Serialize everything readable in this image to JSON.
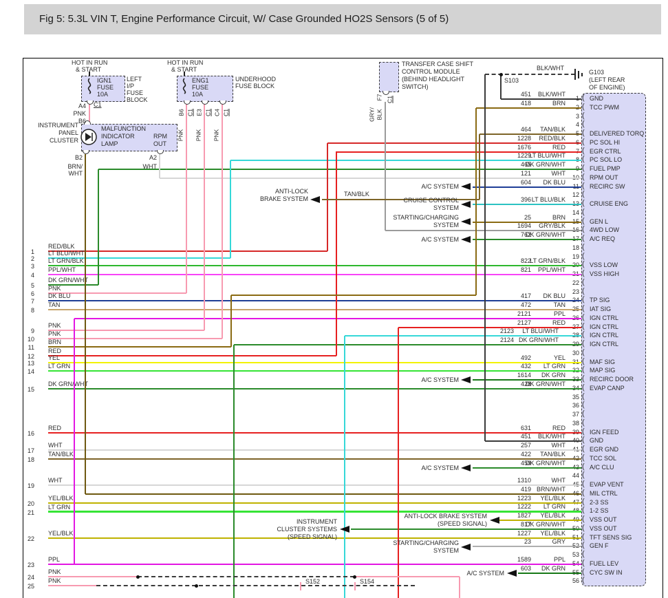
{
  "title": "Fig 5: 5.3L VIN T, Engine Performance Circuit, W/ Case Grounded HO2S Sensors (5 of 5)",
  "colors": {
    "PNK": "#f79ab0",
    "RED": "#e62020",
    "RED/BLK": "#d62828",
    "DK BLU": "#1e3d96",
    "LT BLU/WHT": "#35d8d8",
    "LT BLU/BLK": "#2cc2c2",
    "LT GRN": "#35e435",
    "LT GRN/BLK": "#2eb82e",
    "DK GRN": "#167816",
    "DK GRN/WHT": "#2a8a2a",
    "TAN": "#c7a56d",
    "TAN/BLK": "#7d6428",
    "BRN": "#8a6a12",
    "BRN/WHT": "#6e5810",
    "YEL": "#f2f200",
    "YEL/BLK": "#bfb200",
    "PPL": "#e316e3",
    "PPL/WHT": "#f743f7",
    "WHT": "#d6d6d6",
    "GRY": "#aeaeae",
    "GRY/BLK": "#9b9b9b",
    "BLK/WHT": "#3a3a3a",
    "BLK": "#222222"
  },
  "fuse_ign1": {
    "hot1": "HOT IN RUN",
    "hot2": "& START",
    "name": "IGN1",
    "fuse": "FUSE",
    "amps": "10A",
    "block1": "LEFT",
    "block2": "I/P",
    "block3": "FUSE",
    "block4": "BLOCK",
    "term_a4": "A4",
    "conn": "C1",
    "wire": "PNK",
    "term_b6": "B6"
  },
  "fuse_eng1": {
    "hot1": "HOT IN RUN",
    "hot2": "& START",
    "name": "ENG1",
    "fuse": "FUSE",
    "amps": "10A",
    "block1": "UNDERHOOD",
    "block2": "FUSE BLOCK",
    "drops": [
      {
        "term": "B6",
        "conn": "C1",
        "wire": "PNK"
      },
      {
        "term": "E3",
        "conn": "C1",
        "wire": "PNK"
      },
      {
        "term": "C4",
        "conn": "C1",
        "wire": "PNK"
      }
    ]
  },
  "cluster": {
    "label1": "INSTRUMENT",
    "label2": "PANEL",
    "label3": "CLUSTER",
    "mil1": "MALFUNCTION",
    "mil2": "INDICATOR",
    "mil3": "LAMP",
    "rpm1": "RPM",
    "rpm2": "OUT",
    "term_b2": "B2",
    "b2_wire1": "BRN/",
    "b2_wire2": "WHT",
    "term_a2": "A2",
    "a2_wire": "WHT"
  },
  "transfer_case": {
    "label1": "TRANSFER CASE SHIFT",
    "label2": "CONTROL MODULE",
    "label3": "(BEHIND HEADLIGHT",
    "label4": "SWITCH)",
    "term": "F7",
    "conn": "C1",
    "wire1": "GRY/",
    "wire2": "BLK"
  },
  "ground": {
    "id": "G103",
    "loc1": "(LEFT REAR",
    "loc2": "OF ENGINE)",
    "wire": "BLK/WHT"
  },
  "splices": {
    "s103": "S103",
    "s152": "S152",
    "s154": "S154"
  },
  "systems": {
    "ac": "A/C SYSTEM",
    "cruise1": "CRUISE CONTROL",
    "cruise2": "SYSTEM",
    "charge1": "STARTING/CHARGING",
    "charge2": "SYSTEM",
    "abs1": "ANTI-LOCK",
    "abs2": "BRAKE SYSTEM",
    "abs_tan": "TAN/BLK",
    "abs_sp1": "ANTI-LOCK BRAKE SYSTEM",
    "abs_sp2": "(SPEED SIGNAL)",
    "ic1": "INSTRUMENT",
    "ic2": "CLUSTER SYSTEMS",
    "ic3": "(SPEED SIGNAL)"
  },
  "left_rows": [
    {
      "n": "1",
      "color": "RED/BLK"
    },
    {
      "n": "2",
      "color": "LT BLU/WHT"
    },
    {
      "n": "3",
      "color": "LT GRN/BLK"
    },
    {
      "n": "4",
      "color": "PPL/WHT"
    },
    {
      "n": "5",
      "color": "DK GRN/WHT"
    },
    {
      "n": "6",
      "color": "PNK"
    },
    {
      "n": "7",
      "color": "DK BLU"
    },
    {
      "n": "8",
      "color": "TAN"
    },
    {
      "n": "9",
      "color": "PNK"
    },
    {
      "n": "10",
      "color": "PNK"
    },
    {
      "n": "11",
      "color": "BRN"
    },
    {
      "n": "12",
      "color": "RED"
    },
    {
      "n": "13",
      "color": "YEL"
    },
    {
      "n": "14",
      "color": "LT GRN"
    },
    {
      "n": "15",
      "color": "DK GRN/WHT"
    },
    {
      "n": "16",
      "color": "RED"
    },
    {
      "n": "17",
      "color": "WHT"
    },
    {
      "n": "18",
      "color": "TAN/BLK"
    },
    {
      "n": "19",
      "color": "WHT"
    },
    {
      "n": "20",
      "color": "YEL/BLK"
    },
    {
      "n": "21",
      "color": "LT GRN"
    },
    {
      "n": "22",
      "color": "YEL/BLK"
    },
    {
      "n": "23",
      "color": "PPL"
    },
    {
      "n": "24",
      "color": "PNK"
    },
    {
      "n": "25",
      "color": "PNK"
    }
  ],
  "pins": [
    {
      "n": "1",
      "num": "451",
      "color": "BLK/WHT",
      "label": "GND"
    },
    {
      "n": "2",
      "num": "418",
      "color": "BRN",
      "label": "TCC PWM"
    },
    {
      "n": "3",
      "num": "",
      "color": "",
      "label": ""
    },
    {
      "n": "4",
      "num": "",
      "color": "",
      "label": ""
    },
    {
      "n": "5",
      "num": "464",
      "color": "TAN/BLK",
      "label": "DELIVERED TORQ"
    },
    {
      "n": "6",
      "num": "1228",
      "color": "RED/BLK",
      "label": "PC SOL HI"
    },
    {
      "n": "7",
      "num": "1676",
      "color": "RED",
      "label": "EGR CTRL"
    },
    {
      "n": "8",
      "num": "1229",
      "color": "LT BLU/WHT",
      "label": "PC SOL LO"
    },
    {
      "n": "9",
      "num": "465",
      "color": "DK GRN/WHT",
      "label": "FUEL PMP"
    },
    {
      "n": "10",
      "num": "121",
      "color": "WHT",
      "label": "RPM OUT"
    },
    {
      "n": "11",
      "num": "604",
      "color": "DK BLU",
      "label": "RECIRC SW"
    },
    {
      "n": "12",
      "num": "",
      "color": "",
      "label": ""
    },
    {
      "n": "13",
      "num": "396",
      "color": "LT BLU/BLK",
      "label": "CRUISE ENG"
    },
    {
      "n": "14",
      "num": "",
      "color": "",
      "label": ""
    },
    {
      "n": "15",
      "num": "25",
      "color": "BRN",
      "label": "GEN L"
    },
    {
      "n": "16",
      "num": "1694",
      "color": "GRY/BLK",
      "label": "4WD LOW"
    },
    {
      "n": "17",
      "num": "762",
      "color": "DK GRN/WHT",
      "label": "A/C REQ"
    },
    {
      "n": "18",
      "num": "",
      "color": "",
      "label": ""
    },
    {
      "n": "19",
      "num": "",
      "color": "",
      "label": ""
    },
    {
      "n": "20",
      "num": "822",
      "color": "LT GRN/BLK",
      "label": "VSS LOW"
    },
    {
      "n": "21",
      "num": "821",
      "color": "PPL/WHT",
      "label": "VSS HIGH"
    },
    {
      "n": "22",
      "num": "",
      "color": "",
      "label": ""
    },
    {
      "n": "23",
      "num": "",
      "color": "",
      "label": ""
    },
    {
      "n": "24",
      "num": "417",
      "color": "DK BLU",
      "label": "TP SIG"
    },
    {
      "n": "25",
      "num": "472",
      "color": "TAN",
      "label": "IAT SIG"
    },
    {
      "n": "26",
      "num": "2121",
      "color": "PPL",
      "label": "IGN CTRL"
    },
    {
      "n": "27",
      "num": "2127",
      "color": "RED",
      "label": "IGN CTRL"
    },
    {
      "n": "28",
      "num": "2123",
      "color": "LT BLU/WHT",
      "label": "IGN CTRL"
    },
    {
      "n": "29",
      "num": "2124",
      "color": "DK GRN/WHT",
      "label": "IGN CTRL"
    },
    {
      "n": "30",
      "num": "",
      "color": "",
      "label": ""
    },
    {
      "n": "31",
      "num": "492",
      "color": "YEL",
      "label": "MAF SIG"
    },
    {
      "n": "32",
      "num": "432",
      "color": "LT GRN",
      "label": "MAP SIG"
    },
    {
      "n": "33",
      "num": "1614",
      "color": "DK GRN",
      "label": "RECIRC DOOR"
    },
    {
      "n": "34",
      "num": "428",
      "color": "DK GRN/WHT",
      "label": "EVAP CANP"
    },
    {
      "n": "35",
      "num": "",
      "color": "",
      "label": ""
    },
    {
      "n": "36",
      "num": "",
      "color": "",
      "label": ""
    },
    {
      "n": "37",
      "num": "",
      "color": "",
      "label": ""
    },
    {
      "n": "38",
      "num": "",
      "color": "",
      "label": ""
    },
    {
      "n": "39",
      "num": "631",
      "color": "RED",
      "label": "IGN FEED"
    },
    {
      "n": "40",
      "num": "451",
      "color": "BLK/WHT",
      "label": "GND"
    },
    {
      "n": "41",
      "num": "257",
      "color": "WHT",
      "label": "EGR GND"
    },
    {
      "n": "42",
      "num": "422",
      "color": "TAN/BLK",
      "label": "TCC SOL"
    },
    {
      "n": "43",
      "num": "459",
      "color": "DK GRN/WHT",
      "label": "A/C CLU"
    },
    {
      "n": "44",
      "num": "",
      "color": "",
      "label": ""
    },
    {
      "n": "45",
      "num": "1310",
      "color": "WHT",
      "label": "EVAP VENT"
    },
    {
      "n": "46",
      "num": "419",
      "color": "BRN/WHT",
      "label": "MIL CTRL"
    },
    {
      "n": "47",
      "num": "1223",
      "color": "YEL/BLK",
      "label": "2-3 SS"
    },
    {
      "n": "48",
      "num": "1222",
      "color": "LT GRN",
      "label": "1-2 SS"
    },
    {
      "n": "49",
      "num": "1827",
      "color": "YEL/BLK",
      "label": "VSS OUT"
    },
    {
      "n": "50",
      "num": "817",
      "color": "DK GRN/WHT",
      "label": "VSS OUT"
    },
    {
      "n": "51",
      "num": "1227",
      "color": "YEL/BLK",
      "label": "TFT SENS SIG"
    },
    {
      "n": "52",
      "num": "23",
      "color": "GRY",
      "label": "GEN F"
    },
    {
      "n": "53",
      "num": "",
      "color": "",
      "label": ""
    },
    {
      "n": "54",
      "num": "1589",
      "color": "PPL",
      "label": "FUEL LEV"
    },
    {
      "n": "55",
      "num": "603",
      "color": "DK GRN",
      "label": "CYC SW IN"
    },
    {
      "n": "56",
      "num": "",
      "color": "",
      "label": ""
    }
  ]
}
